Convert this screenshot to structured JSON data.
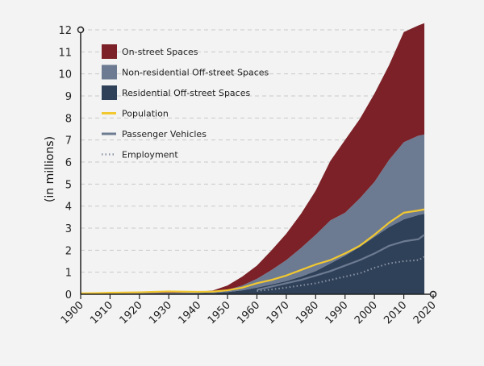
{
  "chart_data": {
    "type": "area",
    "ylabel": "(in millions)",
    "xlim": [
      1900,
      2020
    ],
    "ylim": [
      0,
      12
    ],
    "x_ticks": [
      1900,
      1910,
      1920,
      1930,
      1940,
      1950,
      1960,
      1970,
      1980,
      1990,
      2000,
      2010,
      2020
    ],
    "y_ticks": [
      0,
      1,
      2,
      3,
      4,
      5,
      6,
      7,
      8,
      9,
      10,
      11,
      12
    ],
    "grid": "horizontal dashed",
    "legend_position": "top-left",
    "x": [
      1900,
      1905,
      1910,
      1915,
      1920,
      1925,
      1930,
      1935,
      1940,
      1945,
      1950,
      1955,
      1960,
      1965,
      1970,
      1975,
      1980,
      1985,
      1990,
      1995,
      2000,
      2005,
      2010,
      2015,
      2017
    ],
    "stacked_series": [
      {
        "name": "Residential Off-street Spaces",
        "color": "#2f4158",
        "values": [
          0.0,
          0.01,
          0.02,
          0.02,
          0.03,
          0.03,
          0.04,
          0.04,
          0.05,
          0.06,
          0.1,
          0.18,
          0.3,
          0.45,
          0.6,
          0.8,
          1.05,
          1.4,
          1.75,
          2.15,
          2.6,
          3.05,
          3.4,
          3.6,
          3.65
        ]
      },
      {
        "name": "Non-residential Off-street Spaces",
        "color": "#6d7b92",
        "values": [
          0.0,
          0.01,
          0.01,
          0.02,
          0.02,
          0.03,
          0.03,
          0.03,
          0.03,
          0.04,
          0.1,
          0.22,
          0.4,
          0.65,
          0.95,
          1.3,
          1.65,
          1.95,
          1.95,
          2.2,
          2.5,
          3.05,
          3.5,
          3.6,
          3.6
        ]
      },
      {
        "name": "On-street Spaces",
        "color": "#7b2127",
        "values": [
          0.0,
          0.02,
          0.04,
          0.05,
          0.06,
          0.06,
          0.07,
          0.05,
          0.04,
          0.07,
          0.2,
          0.4,
          0.6,
          0.9,
          1.2,
          1.55,
          2.0,
          2.7,
          3.3,
          3.6,
          4.0,
          4.3,
          5.0,
          5.0,
          5.05
        ]
      }
    ],
    "line_series": [
      {
        "name": "Population",
        "color": "#f2c830",
        "style": "solid",
        "values": [
          0.04,
          0.05,
          0.07,
          0.08,
          0.09,
          0.11,
          0.13,
          0.12,
          0.11,
          0.12,
          0.18,
          0.3,
          0.5,
          0.65,
          0.85,
          1.1,
          1.35,
          1.55,
          1.85,
          2.2,
          2.7,
          3.25,
          3.7,
          3.8,
          3.85
        ]
      },
      {
        "name": "Passenger Vehicles",
        "color": "#6d7b92",
        "style": "solid",
        "values": [
          null,
          null,
          null,
          null,
          null,
          null,
          null,
          null,
          null,
          null,
          null,
          null,
          0.2,
          0.35,
          0.5,
          0.65,
          0.85,
          1.05,
          1.3,
          1.55,
          1.85,
          2.2,
          2.4,
          2.5,
          2.7
        ]
      },
      {
        "name": "Employment",
        "color": "#8d97a8",
        "style": "dotted",
        "values": [
          null,
          null,
          null,
          null,
          null,
          null,
          null,
          null,
          null,
          null,
          null,
          null,
          0.15,
          0.22,
          0.3,
          0.4,
          0.5,
          0.65,
          0.8,
          0.95,
          1.2,
          1.4,
          1.5,
          1.55,
          1.7
        ]
      }
    ]
  },
  "legend": [
    {
      "label": "On-street Spaces",
      "kind": "box",
      "color": "#7b2127"
    },
    {
      "label": "Non-residential Off-street Spaces",
      "kind": "box",
      "color": "#6d7b92"
    },
    {
      "label": "Residential Off-street Spaces",
      "kind": "box",
      "color": "#2f4158"
    },
    {
      "label": "Population",
      "kind": "line",
      "color": "#f2c830"
    },
    {
      "label": "Passenger Vehicles",
      "kind": "line",
      "color": "#6d7b92"
    },
    {
      "label": "Employment",
      "kind": "dotted",
      "color": "#8d97a8"
    }
  ],
  "colors": {
    "background": "#f3f3f3",
    "axis": "#222222",
    "grid": "#c9c9c9"
  }
}
